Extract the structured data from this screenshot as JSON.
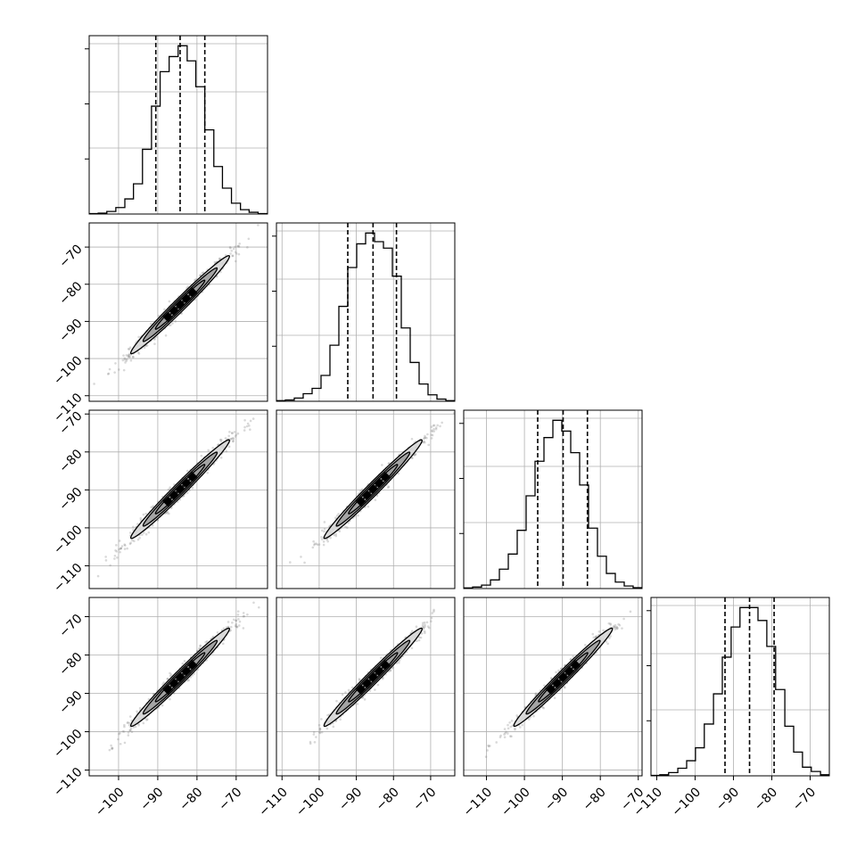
{
  "figure": {
    "type": "corner-plot",
    "parameter_count": 4,
    "colors": {
      "hist": "#000000",
      "grid": "#b0b0b0",
      "points": "#808080",
      "contour_line": "#000000",
      "contour_fill_light": "#d9d9d9",
      "contour_fill_mid": "#9e9e9e",
      "contour_fill_dark": "#000000"
    }
  },
  "chart_data": {
    "type": "corner",
    "params": [
      {
        "index": 0,
        "range": [
          -107.5,
          -62
        ],
        "quantiles": [
          -90.5,
          -84.3,
          -78.0
        ],
        "hist_edges": [
          -107.5,
          -105.2,
          -103.0,
          -100.7,
          -98.4,
          -96.2,
          -93.9,
          -91.6,
          -89.4,
          -87.1,
          -84.8,
          -82.5,
          -80.3,
          -78.0,
          -75.7,
          -73.5,
          -71.2,
          -68.9,
          -66.7,
          -64.4,
          -62.0
        ],
        "hist_counts": [
          0.2,
          0.4,
          1.2,
          3.0,
          7.0,
          14.0,
          30.0,
          50.0,
          66.0,
          73.0,
          78.0,
          71.0,
          59.0,
          39.0,
          22.0,
          12.0,
          5.0,
          2.0,
          0.8,
          0.2
        ],
        "hist_max": 78,
        "x_ticks": [
          -100,
          -90,
          -80,
          -70
        ],
        "y_ticks": [
          -110,
          -100,
          -90,
          -80,
          -70
        ],
        "tick_labels": [
          "−100",
          "−90",
          "−80",
          "−70"
        ]
      },
      {
        "index": 1,
        "range": [
          -111.5,
          -63.5
        ],
        "quantiles": [
          -92.3,
          -85.5,
          -79.2
        ],
        "hist_edges": [
          -111.5,
          -109.1,
          -106.7,
          -104.3,
          -101.9,
          -99.5,
          -97.1,
          -94.7,
          -92.3,
          -89.9,
          -87.5,
          -85.1,
          -82.7,
          -80.3,
          -77.9,
          -75.5,
          -73.1,
          -70.7,
          -68.3,
          -65.9,
          -63.5
        ],
        "hist_counts": [
          0.3,
          0.6,
          1.5,
          3.5,
          6.0,
          12.0,
          26.0,
          44.0,
          62.0,
          73.0,
          78.0,
          74.0,
          71.0,
          58.0,
          34.0,
          18.0,
          8.0,
          3.0,
          1.0,
          0.3
        ],
        "hist_max": 78,
        "x_ticks": [
          -110,
          -100,
          -90,
          -80,
          -70
        ],
        "y_ticks": [
          -110,
          -100,
          -90,
          -80,
          -70
        ],
        "tick_labels": [
          "−110",
          "−100",
          "−90",
          "−80",
          "−70"
        ]
      },
      {
        "index": 2,
        "range": [
          -116,
          -69
        ],
        "quantiles": [
          -96.5,
          -89.8,
          -83.4
        ],
        "hist_edges": [
          -116.0,
          -113.65,
          -111.3,
          -108.95,
          -106.6,
          -104.25,
          -101.9,
          -99.55,
          -97.2,
          -94.85,
          -92.5,
          -90.15,
          -87.8,
          -85.45,
          -83.1,
          -80.75,
          -78.4,
          -76.05,
          -73.7,
          -71.35,
          -69.0
        ],
        "hist_counts": [
          0.3,
          0.7,
          1.6,
          4.0,
          9.0,
          16.0,
          27.0,
          43.0,
          59.0,
          70.0,
          78.0,
          73.0,
          63.0,
          48.0,
          28.0,
          15.0,
          7.0,
          3.0,
          1.2,
          0.4
        ],
        "hist_max": 78,
        "x_ticks": [
          -110,
          -100,
          -90,
          -80,
          -70
        ],
        "y_ticks": [
          -110,
          -100,
          -90,
          -80,
          -70
        ],
        "tick_labels": [
          "−110",
          "−100",
          "−90",
          "−80",
          "−70"
        ]
      },
      {
        "index": 3,
        "range": [
          -111.5,
          -65
        ],
        "quantiles": [
          -92.2,
          -85.8,
          -79.4
        ],
        "hist_edges": [
          -111.5,
          -109.2,
          -106.9,
          -104.5,
          -102.2,
          -99.9,
          -97.6,
          -95.2,
          -92.9,
          -90.6,
          -88.3,
          -85.9,
          -83.6,
          -81.3,
          -79.0,
          -76.6,
          -74.3,
          -72.0,
          -69.7,
          -67.3,
          -65.0
        ],
        "hist_counts": [
          0.2,
          0.5,
          1.5,
          3.5,
          7.0,
          13.0,
          24.0,
          38.0,
          55.0,
          69.0,
          78.0,
          78.0,
          72.0,
          60.0,
          40.0,
          23.0,
          11.0,
          4.0,
          2.0,
          0.5
        ],
        "hist_max": 78,
        "x_ticks": [
          -110,
          -100,
          -90,
          -80,
          -70
        ],
        "y_ticks": [
          -110,
          -100,
          -90,
          -80,
          -70
        ],
        "tick_labels": [
          "−110",
          "−100",
          "−90",
          "−80",
          "−70"
        ]
      }
    ],
    "pairs": [
      {
        "x_param": 0,
        "y_param": 1,
        "center": [
          -84.3,
          -85.5
        ],
        "std": [
          6.3,
          6.6
        ],
        "corr": 0.985
      },
      {
        "x_param": 0,
        "y_param": 2,
        "center": [
          -84.3,
          -89.8
        ],
        "std": [
          6.3,
          6.5
        ],
        "corr": 0.985
      },
      {
        "x_param": 1,
        "y_param": 2,
        "center": [
          -85.5,
          -89.8
        ],
        "std": [
          6.6,
          6.5
        ],
        "corr": 0.985
      },
      {
        "x_param": 0,
        "y_param": 3,
        "center": [
          -84.3,
          -85.8
        ],
        "std": [
          6.3,
          6.4
        ],
        "corr": 0.985
      },
      {
        "x_param": 1,
        "y_param": 3,
        "center": [
          -85.5,
          -85.8
        ],
        "std": [
          6.6,
          6.4
        ],
        "corr": 0.985
      },
      {
        "x_param": 2,
        "y_param": 3,
        "center": [
          -89.8,
          -85.8
        ],
        "std": [
          6.5,
          6.4
        ],
        "corr": 0.985
      }
    ],
    "contour_levels_sigma": [
      0.5,
      1.0,
      1.5,
      2.0
    ],
    "grid": true
  }
}
